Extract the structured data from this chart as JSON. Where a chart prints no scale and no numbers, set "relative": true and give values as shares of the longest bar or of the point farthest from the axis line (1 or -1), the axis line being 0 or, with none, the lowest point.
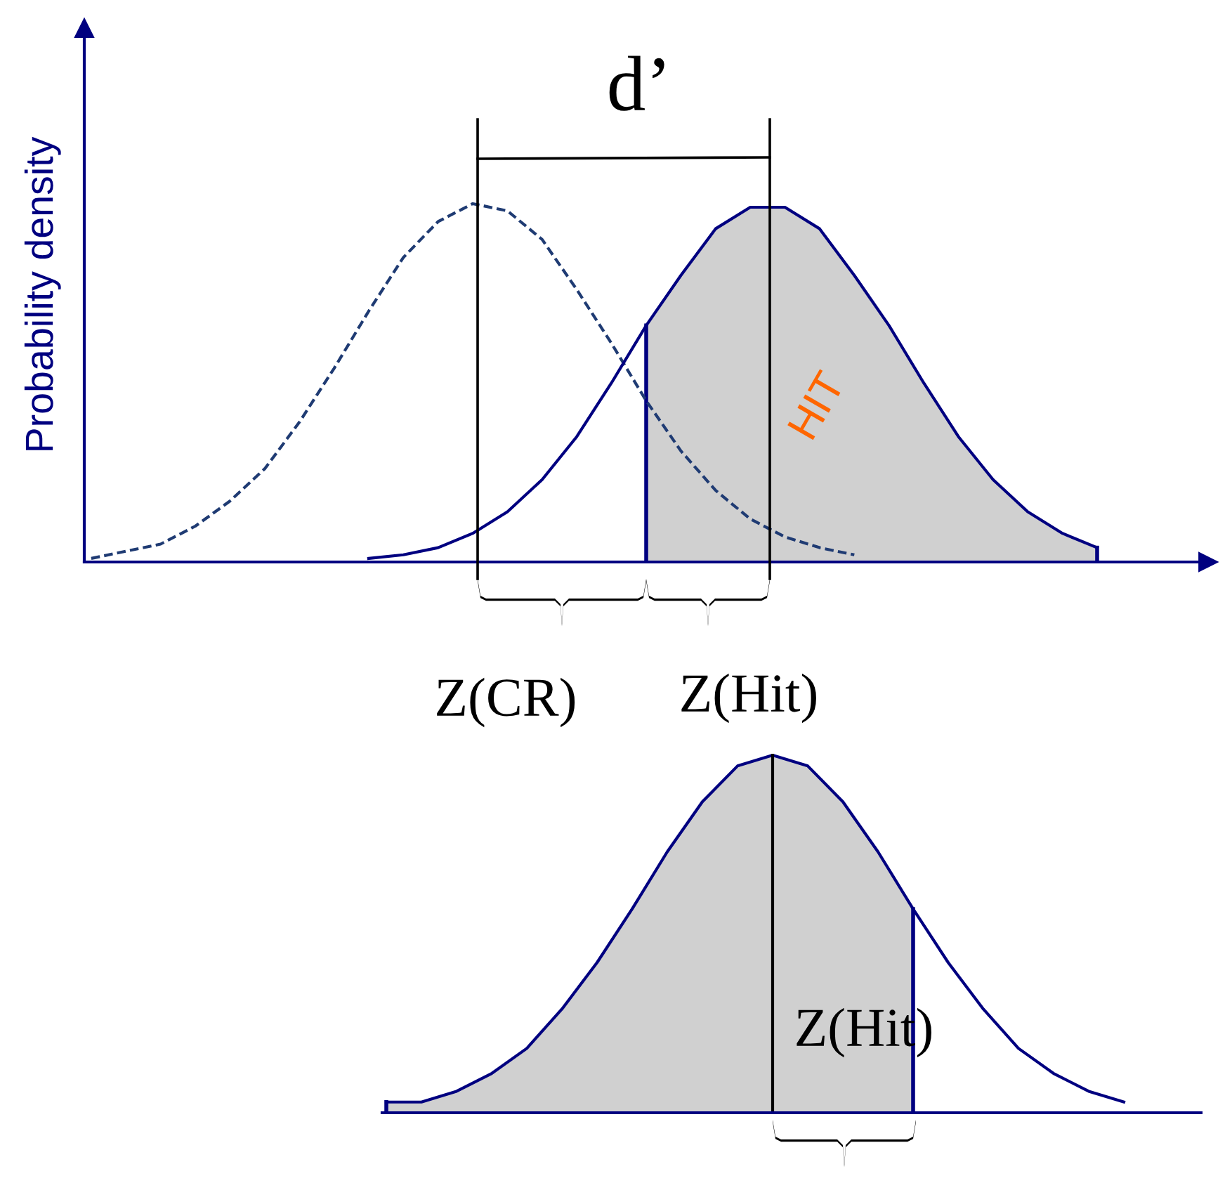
{
  "chart_data": [
    {
      "type": "line",
      "ylabel": "Probability density",
      "relative": true,
      "categories": [
        null,
        null,
        null,
        null,
        null,
        null,
        null,
        null,
        null,
        null,
        null,
        null,
        null,
        null,
        null,
        null,
        null,
        null,
        null,
        null,
        null,
        null,
        null,
        null,
        null,
        null,
        null,
        null,
        null,
        null,
        null,
        null,
        null
      ],
      "series": [
        {
          "type": "area",
          "color": "#d0d0d0",
          "values": [
            null,
            null,
            null,
            null,
            null,
            null,
            null,
            null,
            null,
            null,
            null,
            null,
            null,
            null,
            null,
            null,
            0.66,
            0.8,
            0.93,
            0.99,
            0.99,
            0.93,
            0.8,
            0.66,
            0.5,
            0.35,
            0.23,
            0.14,
            0.08,
            0.04,
            null,
            null,
            null
          ]
        },
        {
          "color": "#1f3b73",
          "line_style": "dashed",
          "values": [
            0.01,
            0.03,
            0.05,
            0.1,
            0.17,
            0.26,
            0.39,
            0.54,
            0.7,
            0.85,
            0.95,
            1.0,
            0.98,
            0.9,
            0.76,
            0.61,
            0.45,
            0.31,
            0.2,
            0.12,
            0.07,
            0.04,
            0.02,
            null,
            null,
            null,
            null,
            null,
            null,
            null,
            null,
            null,
            null
          ]
        },
        {
          "color": "#000080",
          "values": [
            null,
            null,
            null,
            null,
            null,
            null,
            null,
            null,
            0.01,
            0.02,
            0.04,
            0.08,
            0.14,
            0.23,
            0.35,
            0.5,
            0.66,
            0.8,
            0.93,
            0.99,
            0.99,
            0.93,
            0.8,
            0.66,
            0.5,
            0.35,
            0.23,
            0.14,
            0.08,
            0.04,
            null,
            null,
            null
          ]
        }
      ],
      "annotations": [
        "d’",
        "HIT",
        "Z(CR)",
        "Z(Hit)"
      ]
    },
    {
      "type": "line",
      "relative": true,
      "categories": [
        null,
        null,
        null,
        null,
        null,
        null,
        null,
        null,
        null,
        null,
        null,
        null,
        null,
        null,
        null,
        null,
        null,
        null,
        null,
        null,
        null,
        null,
        null,
        null
      ],
      "series": [
        {
          "type": "area",
          "color": "#d0d0d0",
          "values": [
            0.03,
            0.03,
            0.06,
            0.11,
            0.18,
            0.29,
            0.42,
            0.57,
            0.73,
            0.87,
            0.97,
            1.0,
            0.97,
            0.87,
            0.73,
            0.57,
            null,
            null,
            null,
            null,
            null,
            null,
            null,
            null
          ]
        },
        {
          "color": "#000080",
          "values": [
            0.03,
            0.03,
            0.06,
            0.11,
            0.18,
            0.29,
            0.42,
            0.57,
            0.73,
            0.87,
            0.97,
            1.0,
            0.97,
            0.87,
            0.73,
            0.57,
            0.42,
            0.29,
            0.18,
            0.11,
            0.06,
            0.03,
            null,
            null
          ]
        }
      ],
      "annotations": [
        "Z(Hit)"
      ]
    }
  ]
}
